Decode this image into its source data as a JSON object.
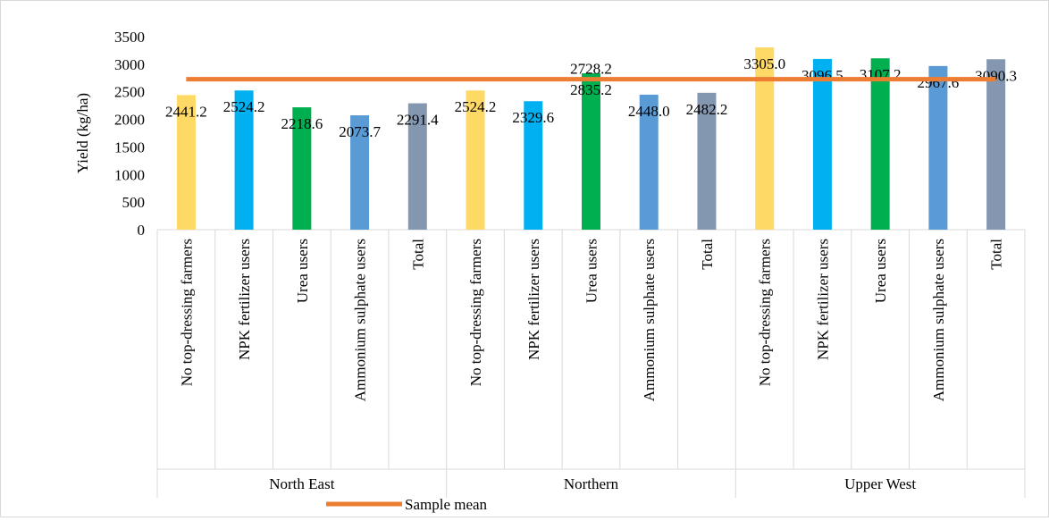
{
  "chart_data": {
    "type": "bar",
    "ylabel": "Yield (kg/ha)",
    "ylim": [
      0,
      3500
    ],
    "yticks": [
      0,
      500,
      1000,
      1500,
      2000,
      2500,
      3000,
      3500
    ],
    "groups": [
      {
        "name": "North East",
        "bars": [
          {
            "category": "No top-dressing farmers",
            "value": 2441.2,
            "label": "2441.2"
          },
          {
            "category": "NPK fertilizer users",
            "value": 2524.2,
            "label": "2524.2"
          },
          {
            "category": "Urea users",
            "value": 2218.6,
            "label": "2218.6"
          },
          {
            "category": "Ammonium sulphate users",
            "value": 2073.7,
            "label": "2073.7"
          },
          {
            "category": "Total",
            "value": 2291.4,
            "label": "2291.4"
          }
        ]
      },
      {
        "name": "Northern",
        "bars": [
          {
            "category": "No top-dressing farmers",
            "value": 2524.2,
            "label": "2524.2"
          },
          {
            "category": "NPK fertilizer users",
            "value": 2329.6,
            "label": "2329.6"
          },
          {
            "category": "Urea users",
            "value": 2835.2,
            "label": "2835.2"
          },
          {
            "category": "Ammonium sulphate users",
            "value": 2448.0,
            "label": "2448.0"
          },
          {
            "category": "Total",
            "value": 2482.2,
            "label": "2482.2"
          }
        ]
      },
      {
        "name": "Upper West",
        "bars": [
          {
            "category": "No top-dressing farmers",
            "value": 3305.0,
            "label": "3305.0"
          },
          {
            "category": "NPK fertilizer users",
            "value": 3096.5,
            "label": "3096.5"
          },
          {
            "category": "Urea users",
            "value": 3107.2,
            "label": "3107.2"
          },
          {
            "category": "Ammonium sulphate users",
            "value": 2967.6,
            "label": "2967.6"
          },
          {
            "category": "Total",
            "value": 3090.3,
            "label": "3090.3"
          }
        ]
      }
    ],
    "bar_colors": [
      "#FFD966",
      "#00B0F0",
      "#00B050",
      "#5B9BD5",
      "#8497B0"
    ],
    "reference_line": {
      "name": "Sample mean",
      "value": 2728.2,
      "label": "2728.2",
      "color": "#ED7D31"
    },
    "grid": false,
    "legend_position": "bottom-left"
  }
}
